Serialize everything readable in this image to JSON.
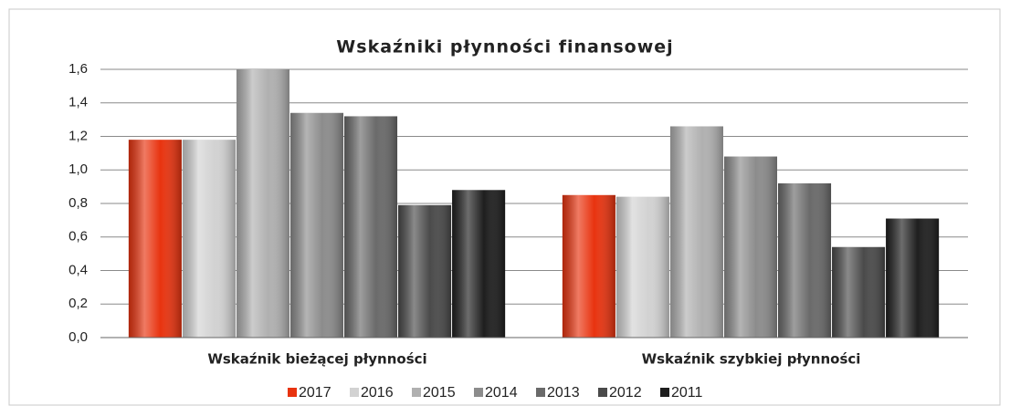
{
  "chart_data": {
    "type": "bar",
    "title": "Wskaźniki płynności finansowej",
    "categories": [
      "Wskaźnik  bieżącej płynności",
      "Wskaźnik szybkiej płynności"
    ],
    "series": [
      {
        "name": "2017",
        "color": "#e8330f",
        "values": [
          1.18,
          0.85
        ]
      },
      {
        "name": "2016",
        "color": "#d2d2d2",
        "values": [
          1.18,
          0.84
        ]
      },
      {
        "name": "2015",
        "color": "#b0b0b0",
        "values": [
          1.6,
          1.26
        ]
      },
      {
        "name": "2014",
        "color": "#8c8c8c",
        "values": [
          1.34,
          1.08
        ]
      },
      {
        "name": "2013",
        "color": "#6a6a6a",
        "values": [
          1.32,
          0.92
        ]
      },
      {
        "name": "2012",
        "color": "#4a4a4a",
        "values": [
          0.79,
          0.54
        ]
      },
      {
        "name": "2011",
        "color": "#1e1e1e",
        "values": [
          0.88,
          0.71
        ]
      }
    ],
    "ylim": [
      0,
      1.6
    ],
    "yticks": [
      {
        "value": 0,
        "label": "0,0"
      },
      {
        "value": 0.2,
        "label": "0,2"
      },
      {
        "value": 0.4,
        "label": "0,4"
      },
      {
        "value": 0.6,
        "label": "0,6"
      },
      {
        "value": 0.8,
        "label": "0,8"
      },
      {
        "value": 1.0,
        "label": "1,0"
      },
      {
        "value": 1.2,
        "label": "1,2"
      },
      {
        "value": 1.4,
        "label": "1,4"
      },
      {
        "value": 1.6,
        "label": "1,6"
      }
    ],
    "grid": true,
    "legend": "bottom"
  }
}
